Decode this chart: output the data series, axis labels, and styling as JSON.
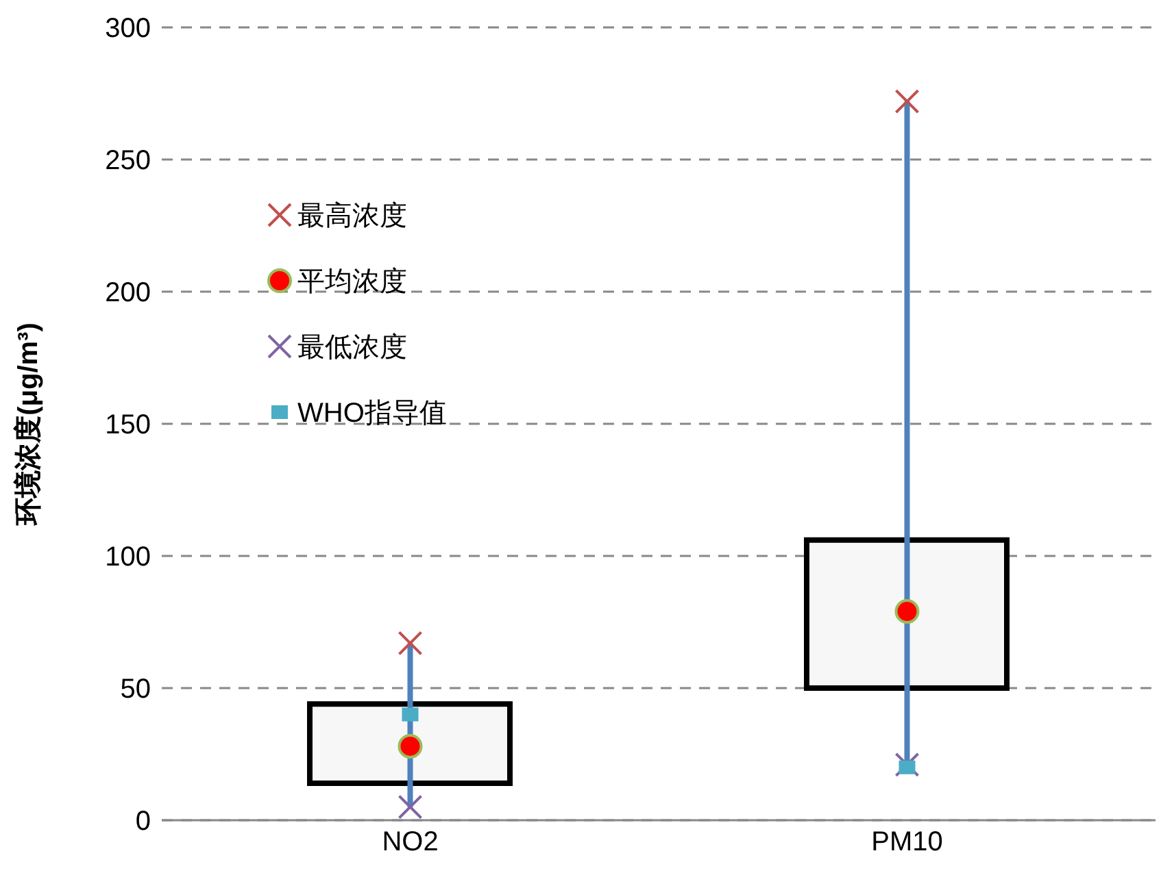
{
  "chart_data": {
    "type": "scatter",
    "ylabel": "环境浓度(μg/m³)",
    "categories": [
      "NO2",
      "PM10"
    ],
    "series": [
      {
        "type": "line",
        "color": "#4f81bd",
        "x": [
          "NO2",
          "NO2"
        ],
        "values": [
          5,
          67
        ]
      },
      {
        "type": "line",
        "color": "#4f81bd",
        "x": [
          "PM10",
          "PM10"
        ],
        "values": [
          21,
          272
        ]
      },
      {
        "type": "bar",
        "color": "#f7f7f7",
        "base": [
          14,
          50
        ],
        "values": [
          30,
          56
        ]
      },
      {
        "name": "最高浓度",
        "color": "#c0504d",
        "marker": "cross",
        "values": [
          67,
          272
        ]
      },
      {
        "name": "平均浓度",
        "color": "#ff0000",
        "marker": "circle",
        "values": [
          28,
          79
        ]
      },
      {
        "name": "最低浓度",
        "color": "#8064a2",
        "marker": "cross",
        "values": [
          5,
          21
        ]
      },
      {
        "name": "WHO指导值",
        "color": "#4bacc6",
        "marker": "square",
        "values": [
          40,
          20
        ]
      }
    ],
    "ylim": [
      0,
      300
    ],
    "yticks": [
      0,
      50,
      100,
      150,
      200,
      250,
      300
    ],
    "grid": "y",
    "legend": "top left"
  }
}
